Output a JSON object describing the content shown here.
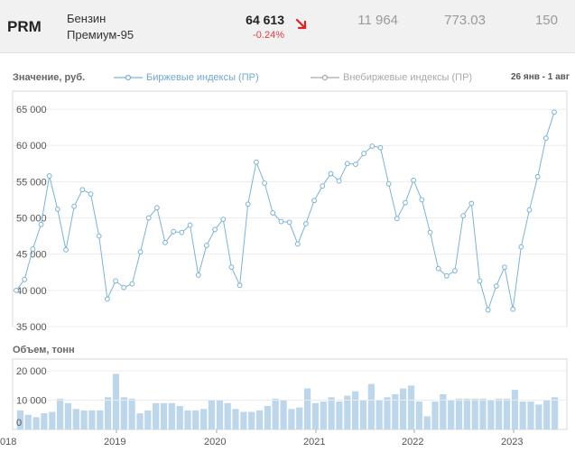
{
  "header": {
    "ticker": "PRM",
    "name_line1": "Бензин",
    "name_line2": "Премиум-95",
    "price": "64 613",
    "change": "-0.24%",
    "metric1": "11 964",
    "metric2": "773.03",
    "metric3": "150",
    "arrow_color": "#e02020"
  },
  "legend": {
    "value_label": "Значение, руб.",
    "series1": "Биржевые индексы (ПР)",
    "series2": "Внебиржевые индексы (ПР)",
    "period": "26 янв - 1 авг"
  },
  "volume_label": "Объем, тонн",
  "chart_data": [
    {
      "type": "line",
      "title": "",
      "ylabel": "Значение, руб.",
      "ylim": [
        35000,
        67500
      ],
      "yticks": [
        "35 000",
        "40 000",
        "45 000",
        "50 000",
        "55 000",
        "60 000",
        "65 000"
      ],
      "grid": true,
      "legend_position": "top",
      "series": [
        {
          "name": "Биржевые индексы (ПР)",
          "color": "#7ab3d6",
          "values": [
            40000,
            41500,
            45700,
            49100,
            55800,
            51200,
            45600,
            51600,
            53900,
            53300,
            47500,
            38800,
            41300,
            40400,
            40900,
            45300,
            50000,
            51400,
            46600,
            48100,
            48000,
            49000,
            42100,
            46200,
            48400,
            49800,
            43200,
            40700,
            51900,
            57700,
            54800,
            50700,
            49500,
            49400,
            46400,
            49200,
            52400,
            54400,
            56100,
            55100,
            57500,
            57400,
            58900,
            59900,
            59700,
            54700,
            49900,
            52100,
            55200,
            52500,
            48000,
            43000,
            42000,
            42700,
            50300,
            52000,
            41300,
            37300,
            40600,
            43200,
            37400,
            46000,
            51100,
            55700,
            61000,
            64600
          ]
        },
        {
          "name": "Внебиржевые индексы (ПР)",
          "color": "#aaaaaa",
          "values": []
        }
      ]
    },
    {
      "type": "bar",
      "title": "",
      "ylabel": "Объем, тонн",
      "ylim": [
        0,
        24000
      ],
      "yticks": [
        "0",
        "10 000",
        "20 000"
      ],
      "x_labels": [
        "018",
        "2019",
        "2020",
        "2021",
        "2022",
        "2023"
      ],
      "color": "#bcd6ec",
      "values": [
        6500,
        5000,
        4200,
        5500,
        6000,
        10500,
        9000,
        7000,
        6500,
        6500,
        6500,
        11000,
        19000,
        11000,
        10500,
        5500,
        6500,
        9000,
        9000,
        9000,
        8000,
        6500,
        6500,
        7000,
        10000,
        10000,
        9000,
        7000,
        6000,
        6000,
        6500,
        8000,
        10500,
        10000,
        7000,
        7500,
        14000,
        9000,
        9500,
        11000,
        9500,
        11500,
        13000,
        10000,
        15500,
        10000,
        11000,
        12000,
        14000,
        15000,
        9500,
        4500,
        9500,
        12000,
        10000,
        10500,
        10500,
        10500,
        10500,
        10000,
        10500,
        10500,
        13500,
        9500,
        9500,
        8500,
        10000,
        11000
      ]
    }
  ]
}
